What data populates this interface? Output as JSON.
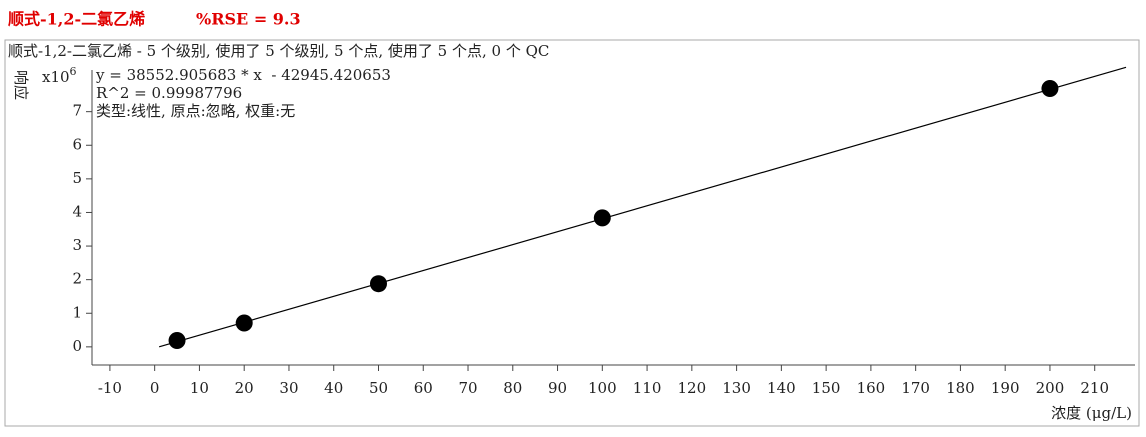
{
  "chart_data": {
    "type": "scatter",
    "title": "顺式-1,2-二氯乙烯",
    "rse": "%RSE = 9.3",
    "subtitle": "顺式-1,2-二氯乙烯 - 5 个级别, 使用了 5 个级别, 5 个点, 使用了 5 个点, 0 个 QC",
    "annotations": [
      "y = 38552.905683 * x  - 42945.420653",
      "R^2 = 0.99987796",
      "类型:线性, 原点:忽略, 权重:无"
    ],
    "y_label": "响应",
    "y_scale": {
      "base": "x10",
      "exponent": "6"
    },
    "x_label": "浓度 (μg/L)",
    "x": [
      5,
      20,
      50,
      100,
      200
    ],
    "values": [
      0.19,
      0.71,
      1.88,
      3.84,
      7.69
    ],
    "color": "#000000",
    "fit_line": {
      "x": [
        1,
        217
      ],
      "values": [
        0,
        8.32
      ],
      "color": "#000000"
    },
    "xlim": [
      -14,
      219
    ],
    "ylim": [
      -0.54,
      8.24
    ],
    "xticks": [
      -10,
      0,
      10,
      20,
      30,
      40,
      50,
      60,
      70,
      80,
      90,
      100,
      110,
      120,
      130,
      140,
      150,
      160,
      170,
      180,
      190,
      200,
      210
    ],
    "yticks": [
      0,
      1,
      2,
      3,
      4,
      5,
      6,
      7
    ],
    "grid": false
  }
}
